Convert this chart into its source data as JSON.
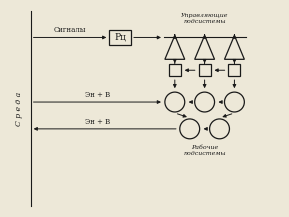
{
  "bg_color": "#ede8d8",
  "line_color": "#1a1a1a",
  "text_color": "#1a1a1a",
  "label_sreda": "С р е д а",
  "label_signals": "Сигналы",
  "label_en_v1": "Эн + В",
  "label_en_v2": "Эн + В",
  "label_rc": "Рц",
  "label_upper": "Управляющие\nподсистемы",
  "label_lower": "Рабочие\nподсистемы",
  "fig_width": 2.89,
  "fig_height": 2.17,
  "dpi": 100
}
